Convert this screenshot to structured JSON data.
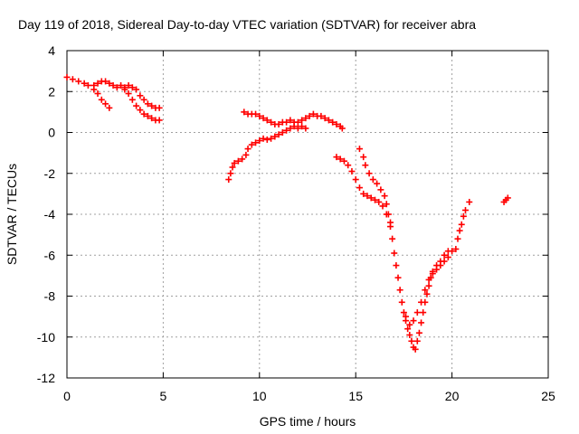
{
  "chart_data": {
    "type": "scatter",
    "title": "Day 119 of 2018, Sidereal Day-to-day VTEC variation (SDTVAR) for receiver abra",
    "xlabel": "GPS time / hours",
    "ylabel": "SDTVAR / TECUs",
    "xlim": [
      0,
      25
    ],
    "ylim": [
      -12,
      4
    ],
    "xticks": [
      0,
      5,
      10,
      15,
      20,
      25
    ],
    "yticks": [
      -12,
      -10,
      -8,
      -6,
      -4,
      -2,
      0,
      2,
      4
    ],
    "grid": true,
    "legend": "none",
    "marker": "plus",
    "color": "#ff0000",
    "series": [
      {
        "values": [
          [
            0.0,
            2.7
          ],
          [
            0.3,
            2.6
          ],
          [
            0.6,
            2.5
          ],
          [
            0.9,
            2.4
          ],
          [
            1.1,
            2.3
          ],
          [
            1.4,
            2.1
          ],
          [
            1.6,
            1.9
          ],
          [
            1.8,
            1.6
          ],
          [
            2.0,
            1.4
          ],
          [
            2.2,
            1.2
          ],
          [
            1.4,
            2.3
          ],
          [
            1.6,
            2.4
          ],
          [
            1.8,
            2.5
          ],
          [
            2.0,
            2.5
          ],
          [
            2.2,
            2.4
          ],
          [
            2.4,
            2.3
          ],
          [
            2.6,
            2.2
          ],
          [
            2.8,
            2.3
          ],
          [
            3.0,
            2.2
          ],
          [
            3.2,
            2.3
          ],
          [
            3.4,
            2.2
          ],
          [
            3.6,
            2.1
          ],
          [
            3.8,
            1.8
          ],
          [
            4.0,
            1.6
          ],
          [
            4.2,
            1.4
          ],
          [
            4.4,
            1.3
          ],
          [
            4.6,
            1.2
          ],
          [
            4.8,
            1.2
          ],
          [
            3.0,
            2.1
          ],
          [
            3.2,
            1.9
          ],
          [
            3.4,
            1.6
          ],
          [
            3.6,
            1.3
          ],
          [
            3.8,
            1.1
          ],
          [
            4.0,
            0.9
          ],
          [
            4.2,
            0.8
          ],
          [
            4.4,
            0.7
          ],
          [
            4.6,
            0.6
          ],
          [
            4.8,
            0.6
          ],
          [
            8.4,
            -2.3
          ],
          [
            8.5,
            -2.0
          ],
          [
            8.6,
            -1.7
          ],
          [
            8.7,
            -1.5
          ],
          [
            8.9,
            -1.4
          ],
          [
            9.1,
            -1.3
          ],
          [
            9.3,
            -1.1
          ],
          [
            9.4,
            -0.8
          ],
          [
            9.6,
            -0.6
          ],
          [
            9.8,
            -0.5
          ],
          [
            10.0,
            -0.4
          ],
          [
            10.2,
            -0.3
          ],
          [
            10.4,
            -0.35
          ],
          [
            10.6,
            -0.3
          ],
          [
            10.8,
            -0.2
          ],
          [
            11.0,
            -0.1
          ],
          [
            11.2,
            0.0
          ],
          [
            11.4,
            0.1
          ],
          [
            11.6,
            0.2
          ],
          [
            11.8,
            0.3
          ],
          [
            12.0,
            0.2
          ],
          [
            12.2,
            0.3
          ],
          [
            12.4,
            0.2
          ],
          [
            9.2,
            1.0
          ],
          [
            9.4,
            0.9
          ],
          [
            9.6,
            0.9
          ],
          [
            9.8,
            0.9
          ],
          [
            10.0,
            0.8
          ],
          [
            10.2,
            0.7
          ],
          [
            10.4,
            0.6
          ],
          [
            10.6,
            0.5
          ],
          [
            10.8,
            0.4
          ],
          [
            11.0,
            0.4
          ],
          [
            11.2,
            0.5
          ],
          [
            11.4,
            0.5
          ],
          [
            11.6,
            0.6
          ],
          [
            11.8,
            0.5
          ],
          [
            12.0,
            0.5
          ],
          [
            12.2,
            0.6
          ],
          [
            12.4,
            0.7
          ],
          [
            12.6,
            0.8
          ],
          [
            12.8,
            0.9
          ],
          [
            13.0,
            0.8
          ],
          [
            13.2,
            0.8
          ],
          [
            13.4,
            0.7
          ],
          [
            13.6,
            0.6
          ],
          [
            13.8,
            0.5
          ],
          [
            14.0,
            0.4
          ],
          [
            14.2,
            0.3
          ],
          [
            14.3,
            0.2
          ],
          [
            14.0,
            -1.2
          ],
          [
            14.2,
            -1.3
          ],
          [
            14.4,
            -1.4
          ],
          [
            14.6,
            -1.6
          ],
          [
            14.8,
            -1.9
          ],
          [
            15.0,
            -2.3
          ],
          [
            15.2,
            -2.7
          ],
          [
            15.4,
            -3.0
          ],
          [
            15.6,
            -3.1
          ],
          [
            15.8,
            -3.2
          ],
          [
            16.0,
            -3.3
          ],
          [
            16.2,
            -3.4
          ],
          [
            16.4,
            -3.6
          ],
          [
            16.6,
            -4.0
          ],
          [
            16.8,
            -4.4
          ],
          [
            15.2,
            -0.8
          ],
          [
            15.4,
            -1.2
          ],
          [
            15.5,
            -1.6
          ],
          [
            15.7,
            -2.0
          ],
          [
            15.9,
            -2.3
          ],
          [
            16.1,
            -2.5
          ],
          [
            16.3,
            -2.8
          ],
          [
            16.5,
            -3.1
          ],
          [
            16.6,
            -3.5
          ],
          [
            16.7,
            -4.0
          ],
          [
            16.8,
            -4.6
          ],
          [
            16.9,
            -5.2
          ],
          [
            17.0,
            -5.9
          ],
          [
            17.1,
            -6.5
          ],
          [
            17.2,
            -7.1
          ],
          [
            17.3,
            -7.7
          ],
          [
            17.4,
            -8.3
          ],
          [
            17.5,
            -8.8
          ],
          [
            17.6,
            -9.2
          ],
          [
            17.7,
            -9.6
          ],
          [
            17.8,
            -9.9
          ],
          [
            17.9,
            -10.2
          ],
          [
            18.0,
            -10.5
          ],
          [
            18.1,
            -10.6
          ],
          [
            18.2,
            -10.2
          ],
          [
            18.3,
            -9.8
          ],
          [
            18.4,
            -9.3
          ],
          [
            18.5,
            -8.8
          ],
          [
            18.6,
            -8.3
          ],
          [
            18.7,
            -7.9
          ],
          [
            18.8,
            -7.5
          ],
          [
            18.9,
            -7.1
          ],
          [
            19.0,
            -6.8
          ],
          [
            19.2,
            -6.5
          ],
          [
            19.4,
            -6.3
          ],
          [
            19.6,
            -6.0
          ],
          [
            19.8,
            -5.8
          ],
          [
            20.0,
            -5.8
          ],
          [
            20.2,
            -5.7
          ],
          [
            20.3,
            -5.2
          ],
          [
            20.4,
            -4.8
          ],
          [
            20.5,
            -4.5
          ],
          [
            20.6,
            -4.1
          ],
          [
            20.7,
            -3.8
          ],
          [
            20.9,
            -3.4
          ],
          [
            17.6,
            -9.0
          ],
          [
            17.8,
            -9.4
          ],
          [
            18.0,
            -9.2
          ],
          [
            18.2,
            -8.8
          ],
          [
            18.4,
            -8.3
          ],
          [
            18.6,
            -7.7
          ],
          [
            18.8,
            -7.2
          ],
          [
            19.0,
            -6.9
          ],
          [
            19.2,
            -6.7
          ],
          [
            19.4,
            -6.5
          ],
          [
            19.6,
            -6.3
          ],
          [
            19.8,
            -6.1
          ],
          [
            22.7,
            -3.4
          ],
          [
            22.8,
            -3.3
          ],
          [
            22.9,
            -3.2
          ]
        ]
      }
    ]
  }
}
